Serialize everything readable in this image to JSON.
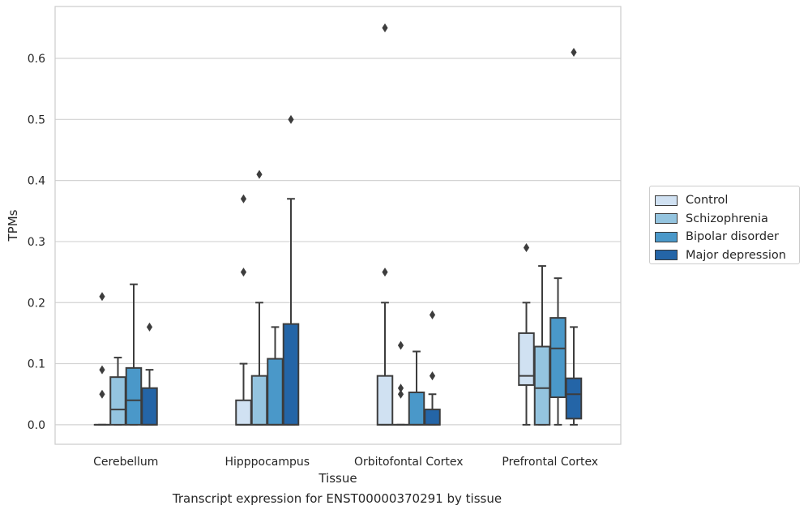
{
  "chart_data": {
    "type": "box",
    "xlabel": "Tissue",
    "ylabel": "TPMs",
    "caption": "Transcript expression for ENST00000370291 by tissue",
    "ylim": [
      -0.032,
      0.685
    ],
    "yticks": [
      "0.0",
      "0.1",
      "0.2",
      "0.3",
      "0.4",
      "0.5",
      "0.6"
    ],
    "categories": [
      "Cerebellum",
      "Hipppocampus",
      "Orbitofontal Cortex",
      "Prefrontal Cortex"
    ],
    "grid": "horizontal",
    "legend_position": "right",
    "series": [
      {
        "name": "Control",
        "color": "#d0e1f2",
        "boxes": [
          {
            "min": 0,
            "q1": 0,
            "median": 0,
            "q3": 0,
            "max": 0,
            "outliers": [
              0.21,
              0.09,
              0.05
            ]
          },
          {
            "min": 0,
            "q1": 0,
            "median": 0,
            "q3": 0.04,
            "max": 0.1,
            "outliers": [
              0.37,
              0.25
            ]
          },
          {
            "min": 0,
            "q1": 0,
            "median": 0,
            "q3": 0.08,
            "max": 0.2,
            "outliers": [
              0.65,
              0.25
            ]
          },
          {
            "min": 0,
            "q1": 0.065,
            "median": 0.08,
            "q3": 0.15,
            "max": 0.2,
            "outliers": [
              0.29
            ]
          }
        ]
      },
      {
        "name": "Schizophrenia",
        "color": "#94c4df",
        "boxes": [
          {
            "min": 0,
            "q1": 0,
            "median": 0.025,
            "q3": 0.078,
            "max": 0.11,
            "outliers": []
          },
          {
            "min": 0,
            "q1": 0,
            "median": 0,
            "q3": 0.08,
            "max": 0.2,
            "outliers": [
              0.41
            ]
          },
          {
            "min": 0,
            "q1": 0,
            "median": 0,
            "q3": 0,
            "max": 0,
            "outliers": [
              0.13,
              0.06,
              0.05
            ]
          },
          {
            "min": 0,
            "q1": 0,
            "median": 0.06,
            "q3": 0.128,
            "max": 0.26,
            "outliers": []
          }
        ]
      },
      {
        "name": "Bipolar disorder",
        "color": "#4a98c9",
        "boxes": [
          {
            "min": 0,
            "q1": 0,
            "median": 0.04,
            "q3": 0.093,
            "max": 0.23,
            "outliers": []
          },
          {
            "min": 0,
            "q1": 0,
            "median": 0,
            "q3": 0.108,
            "max": 0.16,
            "outliers": []
          },
          {
            "min": 0,
            "q1": 0,
            "median": 0,
            "q3": 0.053,
            "max": 0.12,
            "outliers": []
          },
          {
            "min": 0,
            "q1": 0.045,
            "median": 0.125,
            "q3": 0.175,
            "max": 0.24,
            "outliers": []
          }
        ]
      },
      {
        "name": "Major depression",
        "color": "#2465a7",
        "boxes": [
          {
            "min": 0,
            "q1": 0,
            "median": 0,
            "q3": 0.06,
            "max": 0.09,
            "outliers": [
              0.16
            ]
          },
          {
            "min": 0,
            "q1": 0,
            "median": 0,
            "q3": 0.165,
            "max": 0.37,
            "outliers": [
              0.5
            ]
          },
          {
            "min": 0,
            "q1": 0,
            "median": 0,
            "q3": 0.025,
            "max": 0.05,
            "outliers": [
              0.18,
              0.08
            ]
          },
          {
            "min": 0,
            "q1": 0.01,
            "median": 0.05,
            "q3": 0.076,
            "max": 0.16,
            "outliers": [
              0.61
            ]
          }
        ]
      }
    ]
  }
}
